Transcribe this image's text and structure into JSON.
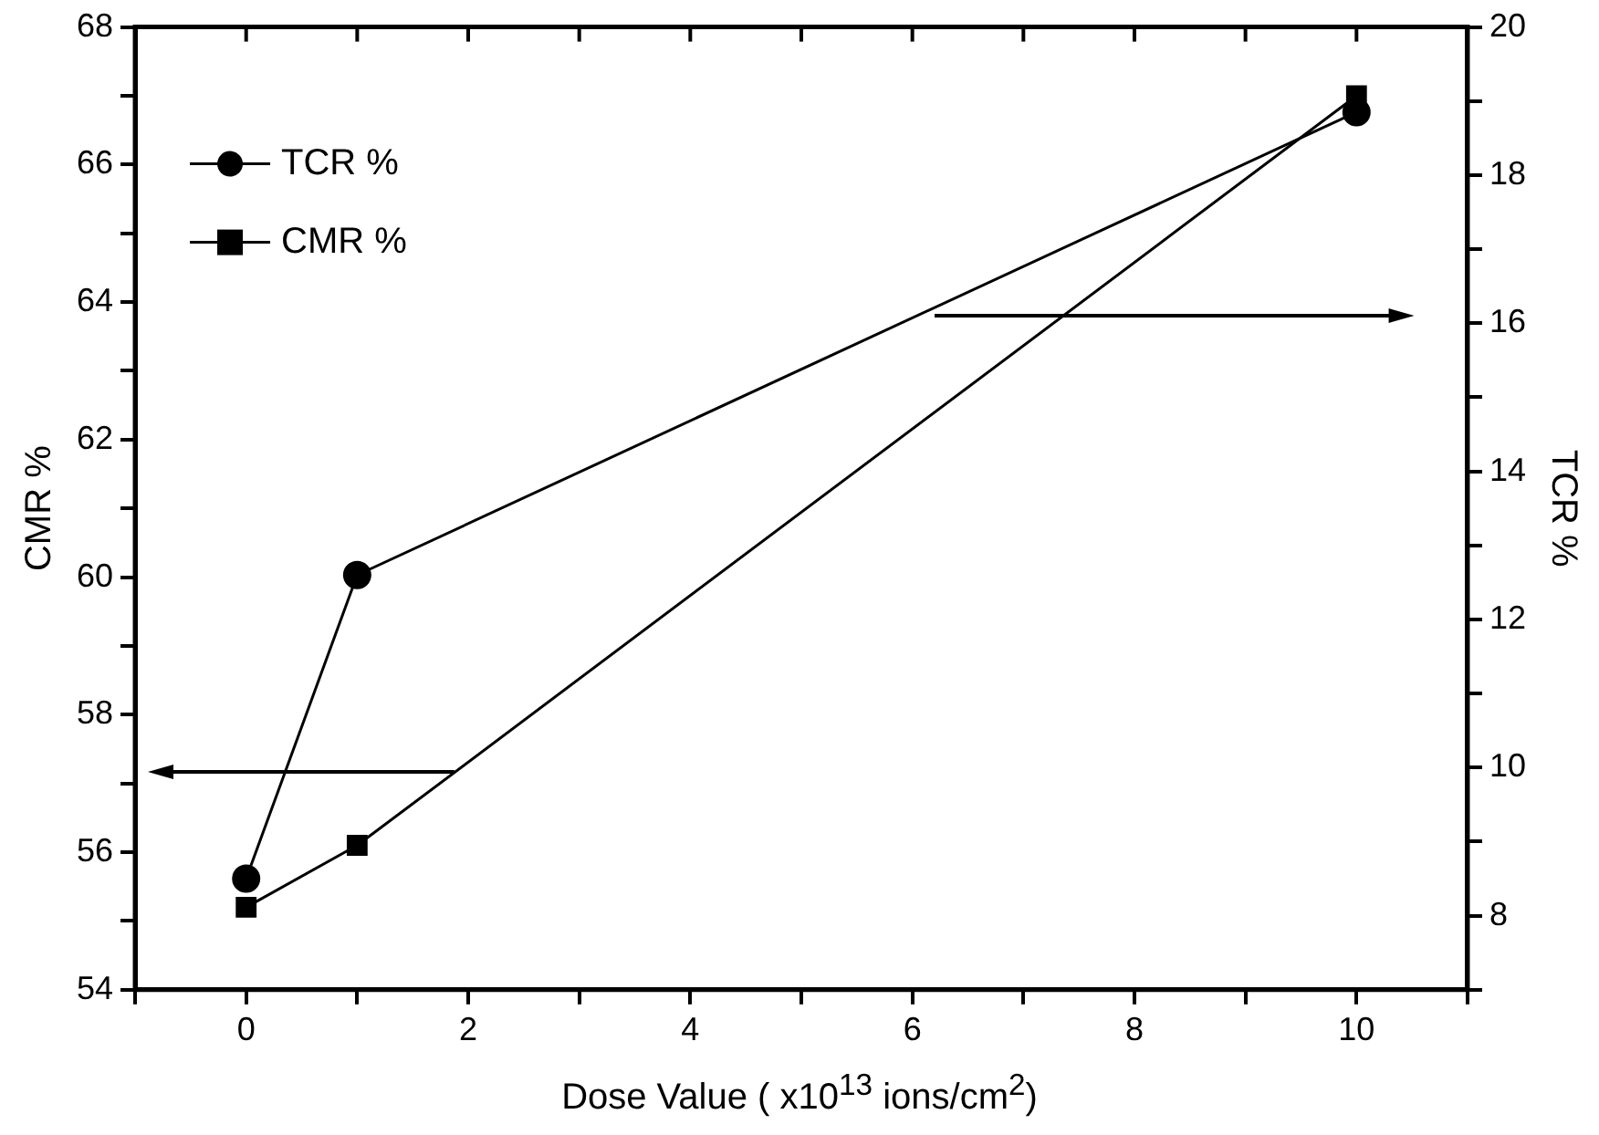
{
  "chart_data": {
    "type": "line",
    "xlabel": "Dose Value ( x10$^{13}$ ions/cm$^{2}$)",
    "ylabel": "CMR %",
    "y2label": "TCR %",
    "x": [
      0,
      1,
      10
    ],
    "series": [
      {
        "name": "TCR %",
        "color": "#000000",
        "values": [
          8.5,
          12.6,
          18.85
        ],
        "axis": "y2",
        "marker": "circle"
      },
      {
        "name": "CMR %",
        "color": "#000000",
        "values": [
          55.2,
          56.1,
          67.0
        ],
        "axis": "y",
        "marker": "square"
      }
    ],
    "xlim": [
      -1,
      11
    ],
    "xticks": [
      {
        "value": -1,
        "label": null
      },
      0,
      {
        "value": 1,
        "label": null
      },
      2,
      {
        "value": 3,
        "label": null
      },
      4,
      {
        "value": 5,
        "label": null
      },
      6,
      {
        "value": 7,
        "label": null
      },
      8,
      {
        "value": 9,
        "label": null
      },
      10,
      {
        "value": 11,
        "label": null
      }
    ],
    "ylim": [
      54,
      68
    ],
    "yticks": [
      54,
      {
        "value": 55,
        "label": null
      },
      56,
      {
        "value": 57,
        "label": null
      },
      58,
      {
        "value": 59,
        "label": null
      },
      60,
      {
        "value": 61,
        "label": null
      },
      62,
      {
        "value": 63,
        "label": null
      },
      64,
      {
        "value": 65,
        "label": null
      },
      66,
      {
        "value": 67,
        "label": null
      },
      68
    ],
    "y2lim": [
      7,
      20
    ],
    "y2ticks": [
      {
        "value": 7,
        "label": null
      },
      8,
      {
        "value": 9,
        "label": null
      },
      10,
      {
        "value": 11,
        "label": null
      },
      12,
      {
        "value": 13,
        "label": null
      },
      14,
      {
        "value": 15,
        "label": null
      },
      16,
      {
        "value": 17,
        "label": null
      },
      18,
      {
        "value": 19,
        "label": null
      },
      20
    ],
    "grid": false,
    "legend": "top left",
    "line_style": "solid"
  }
}
